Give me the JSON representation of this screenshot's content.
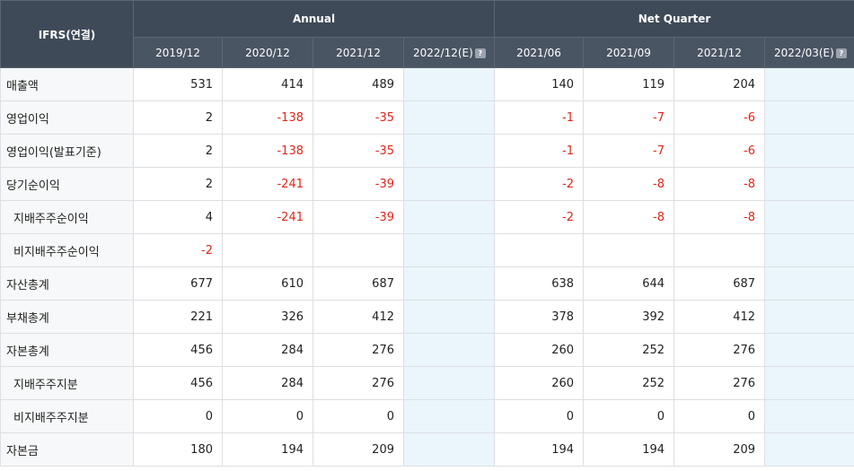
{
  "header": {
    "corner": "IFRS(연결)",
    "group_annual": "Annual",
    "group_quarter": "Net Quarter",
    "columns": [
      {
        "label": "2019/12",
        "estimate": false
      },
      {
        "label": "2020/12",
        "estimate": false
      },
      {
        "label": "2021/12",
        "estimate": false
      },
      {
        "label": "2022/12(E)",
        "estimate": true
      },
      {
        "label": "2021/06",
        "estimate": false
      },
      {
        "label": "2021/09",
        "estimate": false
      },
      {
        "label": "2021/12",
        "estimate": false
      },
      {
        "label": "2022/03(E)",
        "estimate": true
      }
    ],
    "help_icon": "?"
  },
  "rows": [
    {
      "label": "매출액",
      "sub": false,
      "values": [
        "531",
        "414",
        "489",
        "",
        "140",
        "119",
        "204",
        ""
      ]
    },
    {
      "label": "영업이익",
      "sub": false,
      "values": [
        "2",
        "-138",
        "-35",
        "",
        "-1",
        "-7",
        "-6",
        ""
      ]
    },
    {
      "label": "영업이익(발표기준)",
      "sub": false,
      "values": [
        "2",
        "-138",
        "-35",
        "",
        "-1",
        "-7",
        "-6",
        ""
      ]
    },
    {
      "label": "당기순이익",
      "sub": false,
      "values": [
        "2",
        "-241",
        "-39",
        "",
        "-2",
        "-8",
        "-8",
        ""
      ]
    },
    {
      "label": "지배주주순이익",
      "sub": true,
      "values": [
        "4",
        "-241",
        "-39",
        "",
        "-2",
        "-8",
        "-8",
        ""
      ]
    },
    {
      "label": "비지배주주순이익",
      "sub": true,
      "values": [
        "-2",
        "",
        "",
        "",
        "",
        "",
        "",
        ""
      ]
    },
    {
      "label": "자산총계",
      "sub": false,
      "values": [
        "677",
        "610",
        "687",
        "",
        "638",
        "644",
        "687",
        ""
      ]
    },
    {
      "label": "부채총계",
      "sub": false,
      "values": [
        "221",
        "326",
        "412",
        "",
        "378",
        "392",
        "412",
        ""
      ]
    },
    {
      "label": "자본총계",
      "sub": false,
      "values": [
        "456",
        "284",
        "276",
        "",
        "260",
        "252",
        "276",
        ""
      ]
    },
    {
      "label": "지배주주지분",
      "sub": true,
      "values": [
        "456",
        "284",
        "276",
        "",
        "260",
        "252",
        "276",
        ""
      ]
    },
    {
      "label": "비지배주주지분",
      "sub": true,
      "values": [
        "0",
        "0",
        "0",
        "",
        "0",
        "0",
        "0",
        ""
      ]
    },
    {
      "label": "자본금",
      "sub": false,
      "values": [
        "180",
        "194",
        "209",
        "",
        "194",
        "194",
        "209",
        ""
      ]
    }
  ],
  "colors": {
    "header_bg": "#3f4a58",
    "negative": "#e0261a",
    "estimate_bg": "#eaf6fc"
  }
}
